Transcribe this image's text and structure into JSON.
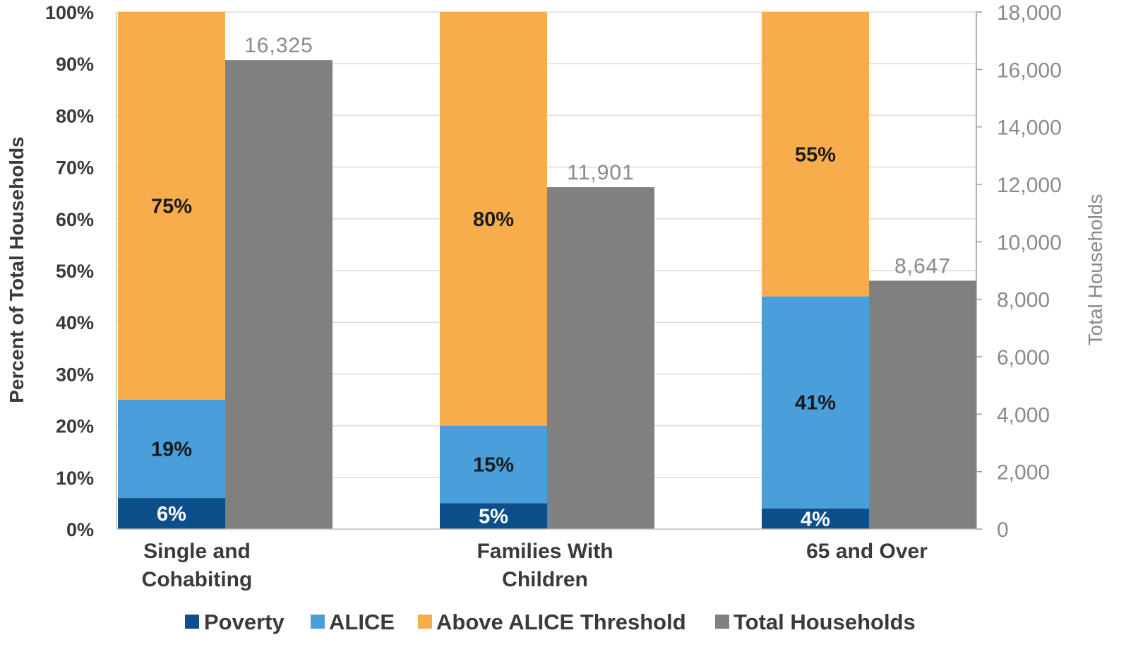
{
  "chart_data": {
    "type": "bar",
    "categories": [
      "Single and Cohabiting",
      "Families With Children",
      "65 and Over"
    ],
    "category_lines": [
      [
        "Single and",
        "Cohabiting"
      ],
      [
        "Families With",
        "Children"
      ],
      [
        "65 and Over"
      ]
    ],
    "series": [
      {
        "name": "Poverty",
        "axis": "left",
        "stack": "pct",
        "color": "#0d4f8b",
        "label_color": "#ffffff",
        "values": [
          6,
          5,
          4
        ],
        "labels": [
          "6%",
          "5%",
          "4%"
        ]
      },
      {
        "name": "ALICE",
        "axis": "left",
        "stack": "pct",
        "color": "#4a9fdb",
        "label_color": "#1a1a1a",
        "values": [
          19,
          15,
          41
        ],
        "labels": [
          "19%",
          "15%",
          "41%"
        ]
      },
      {
        "name": "Above ALICE Threshold",
        "axis": "left",
        "stack": "pct",
        "color": "#f7ad4c",
        "label_color": "#1a1a1a",
        "values": [
          75,
          80,
          55
        ],
        "labels": [
          "75%",
          "80%",
          "55%"
        ]
      },
      {
        "name": "Total Households",
        "axis": "right",
        "color": "#808080",
        "values": [
          16325,
          11901,
          8647
        ],
        "labels": [
          "16,325",
          "11,901",
          "8,647"
        ]
      }
    ],
    "ylabel": "Percent of Total Households",
    "y2label": "Total Households",
    "ylim": [
      0,
      100
    ],
    "y2lim": [
      0,
      18000
    ],
    "yticks": [
      "0%",
      "10%",
      "20%",
      "30%",
      "40%",
      "50%",
      "60%",
      "70%",
      "80%",
      "90%",
      "100%"
    ],
    "y2ticks": [
      "0",
      "2,000",
      "4,000",
      "6,000",
      "8,000",
      "10,000",
      "12,000",
      "14,000",
      "16,000",
      "18,000"
    ],
    "grid": true,
    "legend": "bottom"
  }
}
